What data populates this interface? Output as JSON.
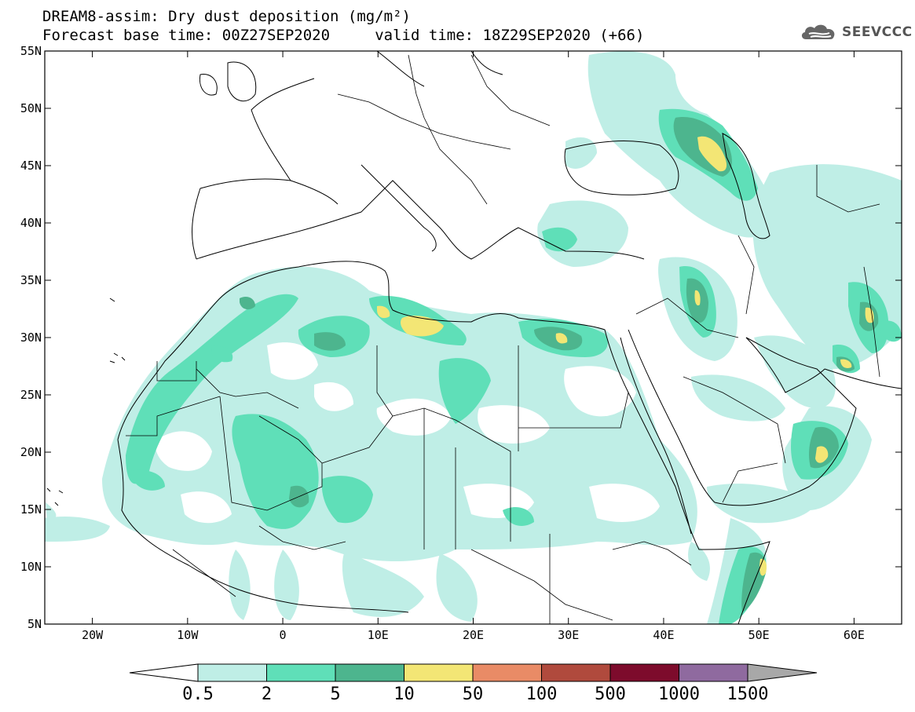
{
  "title_line1": "DREAM8-assim: Dry dust deposition (mg/m²)",
  "title_line2": "Forecast base time: 00Z27SEP2020     valid time: 18Z29SEP2020 (+66)",
  "logo_text": "SEEVCCC",
  "map": {
    "lon_range": [
      -25,
      65
    ],
    "lat_range": [
      5,
      55
    ],
    "lon_ticks": [
      "20W",
      "10W",
      "0",
      "10E",
      "20E",
      "30E",
      "40E",
      "50E",
      "60E"
    ],
    "lat_ticks": [
      "55N",
      "50N",
      "45N",
      "40N",
      "35N",
      "30N",
      "25N",
      "20N",
      "15N",
      "10N",
      "5N"
    ]
  },
  "colorbar": {
    "labels": [
      "0.5",
      "2",
      "5",
      "10",
      "50",
      "100",
      "500",
      "1000",
      "1500"
    ],
    "colors": [
      "#bfeee6",
      "#5fdfb8",
      "#4db58e",
      "#f3e675",
      "#e98b66",
      "#b04a3d",
      "#7d0b2c",
      "#8f6a9f"
    ],
    "over_color": "#a8a8a8",
    "under_color": "#ffffff"
  },
  "palette": {
    "c1": "#bfeee6",
    "c2": "#5fdfb8",
    "c3": "#4db58e",
    "c4": "#f3e675"
  }
}
